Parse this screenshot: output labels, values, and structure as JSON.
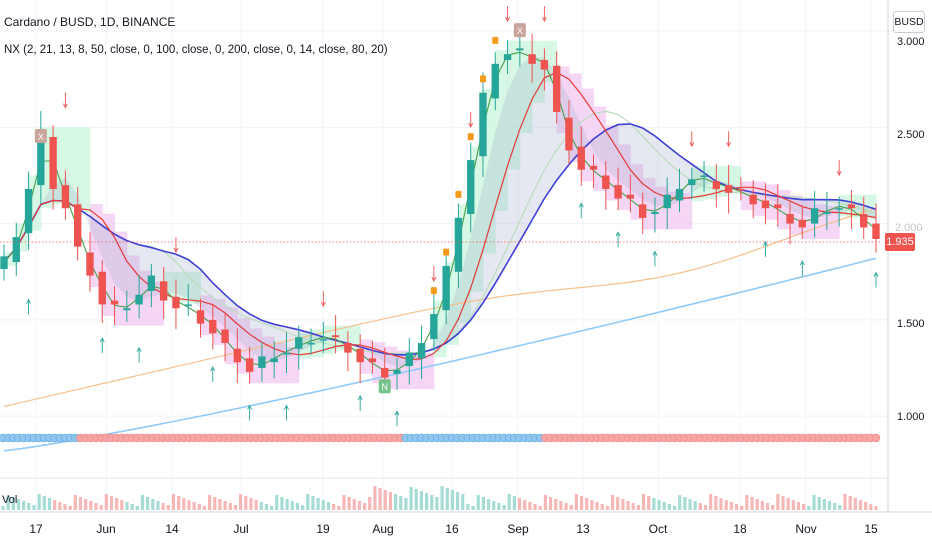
{
  "header": {
    "title": "Cardano / BUSD, 1D, BINANCE",
    "indicator": "NX (2, 21, 13, 8, 50, close, 0, 100, close, 0, 200, close, 0, 14, close, 80, 20)",
    "symbol_badge": "BUSD",
    "volume_label": "Vol"
  },
  "price_tag": "1.935",
  "colors": {
    "up": "#26a69a",
    "down": "#ef5350",
    "ma_fast": "#43a047",
    "ma_mid": "#e53935",
    "ma_slow": "#3f3fd6",
    "ma_100": "#f5c08a",
    "ma_200": "#90caf9",
    "ma_50": "#b9ddbd",
    "box_green": "#c8f5dc",
    "box_purple": "#f1c9f2",
    "signal_orange": "#f59b1c"
  },
  "chart_data": {
    "type": "line",
    "title": "Cardano / BUSD, 1D, BINANCE",
    "x_ticks": [
      "17",
      "Jun",
      "14",
      "Jul",
      "19",
      "Aug",
      "16",
      "Sep",
      "13",
      "Oct",
      "18",
      "Nov",
      "15"
    ],
    "y_ticks": [
      "3.000",
      "2.500",
      "2.000",
      "1.500",
      "1.000"
    ],
    "ylim": [
      0.72,
      3.12
    ],
    "grid": true,
    "last_price": 1.935,
    "series": [
      {
        "name": "",
        "values": [
          1.8,
          1.95,
          2.2,
          2.45,
          2.2,
          2.1,
          1.85,
          1.75,
          1.6,
          1.55,
          1.58,
          1.65,
          1.7,
          1.62,
          1.58,
          1.55,
          1.5,
          1.45,
          1.35,
          1.3,
          1.25,
          1.28,
          1.32,
          1.35,
          1.38,
          1.4,
          1.42,
          1.38,
          1.35,
          1.3,
          1.25,
          1.22,
          1.26,
          1.3,
          1.4,
          1.55,
          1.75,
          2.05,
          2.35,
          2.65,
          2.85,
          2.9,
          2.88,
          2.85,
          2.82,
          2.55,
          2.4,
          2.3,
          2.25,
          2.2,
          2.15,
          2.1,
          2.05,
          2.08,
          2.12,
          2.2,
          2.25,
          2.22,
          2.2,
          2.18,
          2.15,
          2.12,
          2.1,
          2.05,
          2.02,
          2.0,
          2.05,
          2.08,
          2.1,
          2.05,
          2.0,
          1.94
        ]
      }
    ]
  }
}
